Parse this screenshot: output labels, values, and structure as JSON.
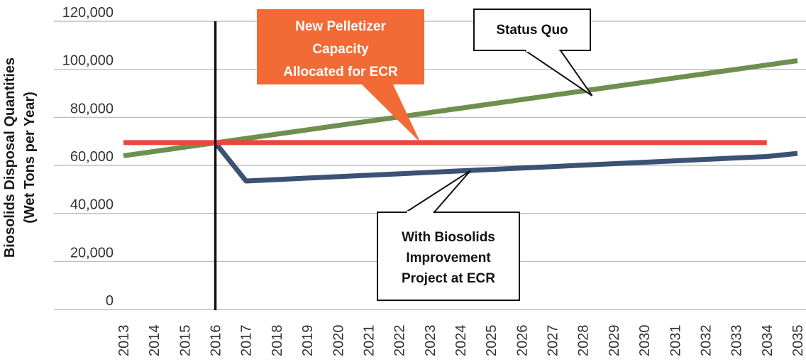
{
  "chart_data": {
    "type": "line",
    "title": "",
    "xlabel": "",
    "ylabel": [
      "Biosolids Disposal Quantities",
      "(Wet Tons per Year)"
    ],
    "ylim": [
      0,
      120000
    ],
    "yticks": [
      "0",
      "20,000",
      "40,000",
      "60,000",
      "80,000",
      "100,000",
      "120,000"
    ],
    "ytick_values": [
      0,
      20000,
      40000,
      60000,
      80000,
      100000,
      120000
    ],
    "x": [
      "2013",
      "2014",
      "2015",
      "2016",
      "2017",
      "2018",
      "2019",
      "2020",
      "2021",
      "2022",
      "2023",
      "2024",
      "2025",
      "2026",
      "2027",
      "2028",
      "2029",
      "2030",
      "2031",
      "2032",
      "2033",
      "2034",
      "2035"
    ],
    "grid": true,
    "marker_year": "2016",
    "series": [
      {
        "name": "Status Quo",
        "color": "#6f8f4e",
        "values": [
          64000,
          65800,
          67600,
          69400,
          71200,
          73000,
          74800,
          76600,
          78400,
          80200,
          82000,
          83800,
          85600,
          87400,
          89200,
          91000,
          92800,
          94600,
          96400,
          98200,
          100000,
          101800,
          103600
        ]
      },
      {
        "name": "New Pelletizer Capacity Allocated for ECR",
        "color": "#e8483b",
        "values": [
          69500,
          69500,
          69500,
          69500,
          69500,
          69500,
          69500,
          69500,
          69500,
          69500,
          69500,
          69500,
          69500,
          69500,
          69500,
          69500,
          69500,
          69500,
          69500,
          69500,
          69500,
          69500,
          null
        ]
      },
      {
        "name": "With Biosolids Improvement Project at ECR",
        "color": "#3b5274",
        "values": [
          null,
          null,
          null,
          69400,
          53500,
          54100,
          54700,
          55300,
          55900,
          56500,
          57100,
          57700,
          58300,
          58900,
          59500,
          60100,
          60700,
          61300,
          61900,
          62500,
          63100,
          63700,
          65000
        ]
      }
    ],
    "annotations": [
      {
        "id": "pelletizer",
        "lines": [
          "New Pelletizer",
          "Capacity",
          "Allocated for ECR"
        ],
        "fill": "#f26a36",
        "text_color": "#ffffff"
      },
      {
        "id": "status",
        "lines": [
          "Status Quo"
        ],
        "fill": "#ffffff",
        "text_color": "#111111"
      },
      {
        "id": "improve",
        "lines": [
          "With Biosolids",
          "Improvement",
          "Project at ECR"
        ],
        "fill": "#ffffff",
        "text_color": "#111111"
      }
    ]
  }
}
